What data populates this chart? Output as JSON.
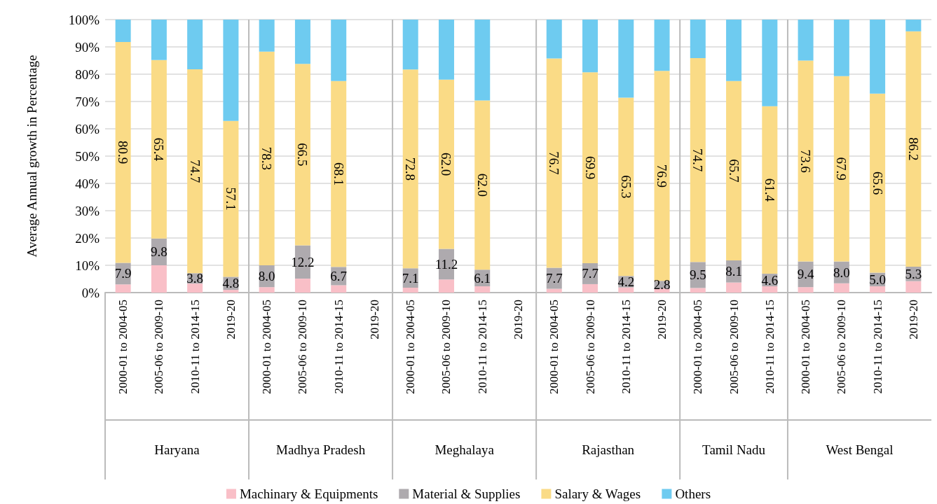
{
  "chart_data": {
    "type": "bar",
    "stacked": true,
    "ylabel": "Average Annual growth in Percentage",
    "categories": [
      "2000-01 to 2004-05",
      "2005-06 to 2009-10",
      "2010-11 to 2014-15",
      "2019-20",
      "2000-01 to 2004-05",
      "2005-06 to 2009-10",
      "2010-11 to 2014-15",
      "2019-20",
      "2000-01 to 2004-05",
      "2005-06 to 2009-10",
      "2010-11 to 2014-15",
      "2019-20",
      "2000-01 to 2004-05",
      "2005-06 to 2009-10",
      "2010-11 to 2014-15",
      "2019-20",
      "2000-01 to 2004-05",
      "2005-06 to 2009-10",
      "2010-11 to 2014-15",
      "2000-01 to 2004-05",
      "2005-06 to 2009-10",
      "2010-11 to 2014-15",
      "2019-20"
    ],
    "annotations": [
      "Haryana",
      "Madhya Pradesh",
      "Meghalaya",
      "Rajasthan",
      "Tamil Nadu",
      "West Bengal"
    ],
    "series": [
      {
        "name": "Machinary & Equipments",
        "color": "#f9bfc7",
        "values": [
          3.0,
          10.0,
          3.3,
          1.0,
          2.0,
          5.1,
          2.7,
          null,
          1.8,
          4.8,
          2.3,
          null,
          1.4,
          3.1,
          1.9,
          1.5,
          1.7,
          3.7,
          2.3,
          2.0,
          3.4,
          2.3,
          4.2
        ]
      },
      {
        "name": "Material & Supplies",
        "color": "#aeaaae",
        "values": [
          7.9,
          9.8,
          3.8,
          4.8,
          8.0,
          12.2,
          6.7,
          null,
          7.1,
          11.2,
          6.1,
          null,
          7.7,
          7.7,
          4.2,
          2.8,
          9.5,
          8.1,
          4.6,
          9.4,
          8.0,
          5.0,
          5.3
        ],
        "value_labels": [
          "7.9",
          "9.8",
          "3.8",
          "4.8",
          "8.0",
          "12.2",
          "6.7",
          null,
          "7.1",
          "11.2",
          "6.1",
          null,
          "7.7",
          "7.7",
          "4.2",
          "2.8",
          "9.5",
          "8.1",
          "4.6",
          "9.4",
          "8.0",
          "5.0",
          "5.3"
        ]
      },
      {
        "name": "Salary & Wages",
        "color": "#fadb86",
        "values": [
          80.9,
          65.4,
          74.7,
          57.1,
          78.3,
          66.5,
          68.1,
          null,
          72.8,
          62.0,
          62.0,
          null,
          76.7,
          69.9,
          65.3,
          76.9,
          74.7,
          65.7,
          61.4,
          73.6,
          67.9,
          65.6,
          86.2
        ],
        "value_labels": [
          "80.9",
          "65.4",
          "74.7",
          "57.1",
          "78.3",
          "66.5",
          "68.1",
          null,
          "72.8",
          "62.0",
          "62.0",
          null,
          "76.7",
          "69.9",
          "65.3",
          "76.9",
          "74.7",
          "65.7",
          "61.4",
          "73.6",
          "67.9",
          "65.6",
          "86.2"
        ]
      },
      {
        "name": "Others",
        "color": "#6ecbf0",
        "values": [
          8.2,
          14.8,
          18.2,
          37.1,
          11.7,
          16.2,
          22.5,
          null,
          18.3,
          22.0,
          29.6,
          null,
          14.2,
          19.3,
          28.6,
          18.8,
          14.1,
          22.5,
          31.7,
          15.0,
          20.7,
          27.1,
          4.3
        ]
      }
    ],
    "ylim": [
      0,
      100
    ],
    "yticks": [
      {
        "value": 0,
        "label": "0%"
      },
      {
        "value": 10,
        "label": "10%"
      },
      {
        "value": 20,
        "label": "20%"
      },
      {
        "value": 30,
        "label": "30%"
      },
      {
        "value": 40,
        "label": "40%"
      },
      {
        "value": 50,
        "label": "50%"
      },
      {
        "value": 60,
        "label": "60%"
      },
      {
        "value": 70,
        "label": "70%"
      },
      {
        "value": 80,
        "label": "80%"
      },
      {
        "value": 90,
        "label": "90%"
      },
      {
        "value": 100,
        "label": "100%"
      }
    ],
    "grid": "y",
    "legend": "bottom"
  }
}
